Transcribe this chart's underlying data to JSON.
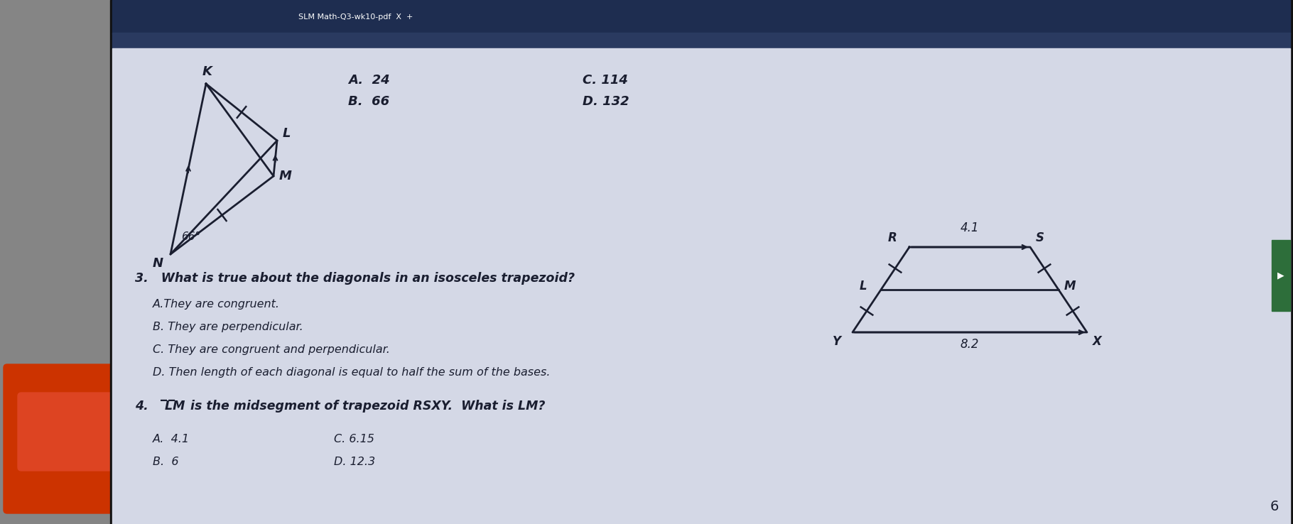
{
  "bg_left": "#8a8a8a",
  "bg_screen": "#d8dbe8",
  "toolbar_color": "#1e2d50",
  "text_color": "#1a1e30",
  "title_bar_text": "SLM Math-Q3-wk10-pdf  X  +",
  "q3_question": "3.   What is true about the diagonals in an isosceles trapezoid?",
  "q3_A": "A.They are congruent.",
  "q3_B": "B. They are perpendicular.",
  "q3_C": "C. They are congruent and perpendicular.",
  "q3_D": "D. Then length of each diagonal is equal to half the sum of the bases.",
  "q4_question": "4.  LM is the midsegment of trapezoid RSXY.  What is LM?",
  "q4_A": "A.  4.1",
  "q4_B": "B.  6",
  "q4_C": "C. 6.15",
  "q4_D": "D. 12.3",
  "page_num": "6",
  "ans_A": "A.  24",
  "ans_B": "B.  66",
  "ans_C": "C. 114",
  "ans_D": "D. 132"
}
